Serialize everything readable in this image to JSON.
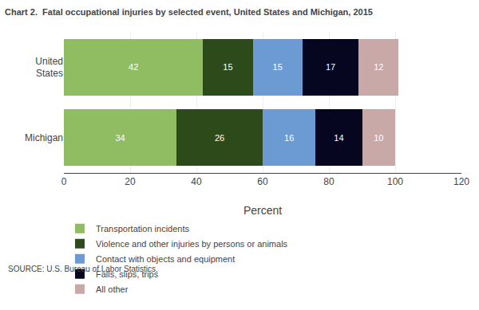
{
  "chart_data": {
    "type": "bar",
    "orientation": "horizontal",
    "stacked": true,
    "data_labels": true,
    "title": "Chart 2.  Fatal occupational injuries by selected event, United States and Michigan, 2015",
    "xlabel": "Percent",
    "annotations": [
      "SOURCE: U.S. Bureau of Labor Statistics."
    ],
    "categories": [
      "United\nStates",
      "Michigan"
    ],
    "series": [
      {
        "name": "Transportation incidents",
        "color": "#90bc62",
        "values": [
          42,
          34
        ]
      },
      {
        "name": "Violence and other injuries by persons or animals",
        "color": "#2d4a1a",
        "values": [
          15,
          26
        ]
      },
      {
        "name": "Contact with objects and equipment",
        "color": "#6b9bd2",
        "values": [
          15,
          16
        ]
      },
      {
        "name": "Falls, slips, trips",
        "color": "#060620",
        "values": [
          17,
          14
        ]
      },
      {
        "name": "All other",
        "color": "#c9a8a8",
        "values": [
          12,
          10
        ]
      }
    ],
    "xlim": [
      0,
      120
    ],
    "xticks": [
      0,
      20,
      40,
      60,
      80,
      100,
      120
    ],
    "grid": true,
    "legend": "bottom"
  }
}
